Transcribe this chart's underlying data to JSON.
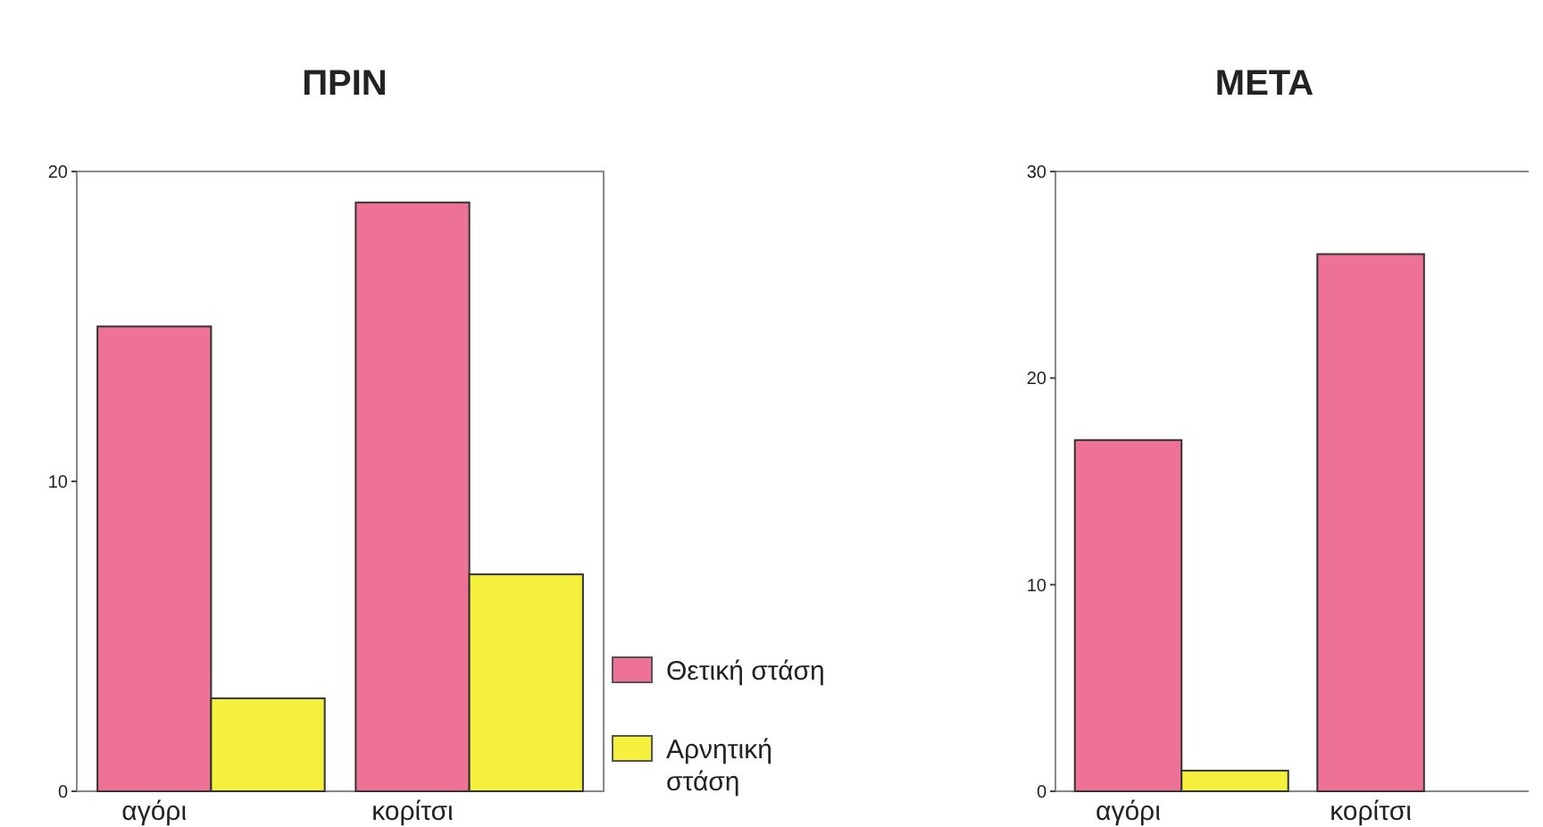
{
  "chart_data": [
    {
      "type": "bar",
      "title": "ΠΡΙΝ",
      "categories": [
        "αγόρι",
        "κορίτσι"
      ],
      "series": [
        {
          "name": "Θετική στάση",
          "color": "#ee7296",
          "values": [
            15,
            19
          ]
        },
        {
          "name": "Αρνητική στάση",
          "color": "#f5f03c",
          "values": [
            3,
            7
          ]
        }
      ],
      "ylim": [
        0,
        20
      ],
      "yticks": [
        0,
        10,
        20
      ],
      "grid": false,
      "legend": "right"
    },
    {
      "type": "bar",
      "title": "ΜΕΤΑ",
      "categories": [
        "αγόρι",
        "κορίτσι"
      ],
      "series": [
        {
          "color": "#ee7296",
          "values": [
            17,
            26
          ]
        },
        {
          "color": "#f5f03c",
          "values": [
            1,
            null
          ]
        }
      ],
      "ylim": [
        0,
        30
      ],
      "yticks": [
        0,
        10,
        20,
        30
      ],
      "grid": false,
      "legend": false
    }
  ]
}
